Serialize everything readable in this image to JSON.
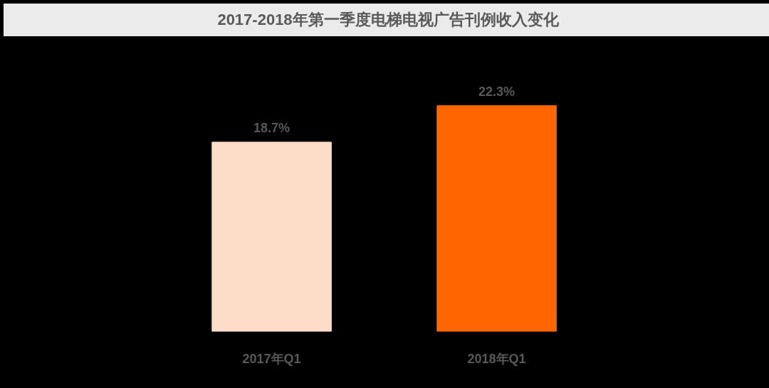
{
  "chart_data": {
    "type": "bar",
    "title": "2017-2018年第一季度电梯电视广告刊例收入变化",
    "categories": [
      "2017年Q1",
      "2018年Q1"
    ],
    "values": [
      18.7,
      22.3
    ],
    "value_labels": [
      "18.7%",
      "22.3%"
    ],
    "colors": [
      "#fddcc8",
      "#ff6600"
    ],
    "grid": false
  }
}
